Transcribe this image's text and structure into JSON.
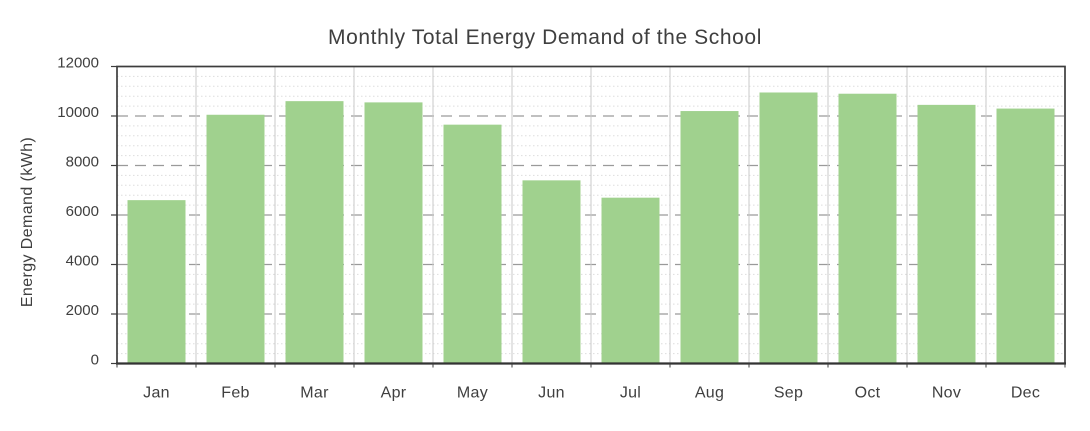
{
  "chart_data": {
    "type": "bar",
    "title": "Monthly Total Energy Demand of the School",
    "xlabel": "",
    "ylabel": "Energy Demand (kWh)",
    "categories": [
      "Jan",
      "Feb",
      "Mar",
      "Apr",
      "May",
      "Jun",
      "Jul",
      "Aug",
      "Sep",
      "Oct",
      "Nov",
      "Dec"
    ],
    "values": [
      6600,
      10050,
      10600,
      10550,
      9650,
      7400,
      6700,
      10200,
      10950,
      10900,
      10450,
      10300
    ],
    "ylim": [
      0,
      12000
    ],
    "y_major_unit": 2000,
    "y_minor_unit": 400,
    "yticks": [
      "0",
      "2000",
      "4000",
      "6000",
      "8000",
      "10000",
      "12000"
    ],
    "grid": {
      "major_horizontal": "dashed",
      "minor_horizontal": "dotted",
      "vertical_category": "solid"
    },
    "legend": "none",
    "colors": {
      "bar_fill": "#A0D18E",
      "plot_border": "#3d3d3d",
      "axis_baseline": "#333333",
      "major_gridline": "#9a9a9a",
      "minor_gridline": "#dddddd",
      "vertical_gridline": "#c9c9c9",
      "text": "#3f3f3f",
      "background": "#ffffff"
    }
  }
}
